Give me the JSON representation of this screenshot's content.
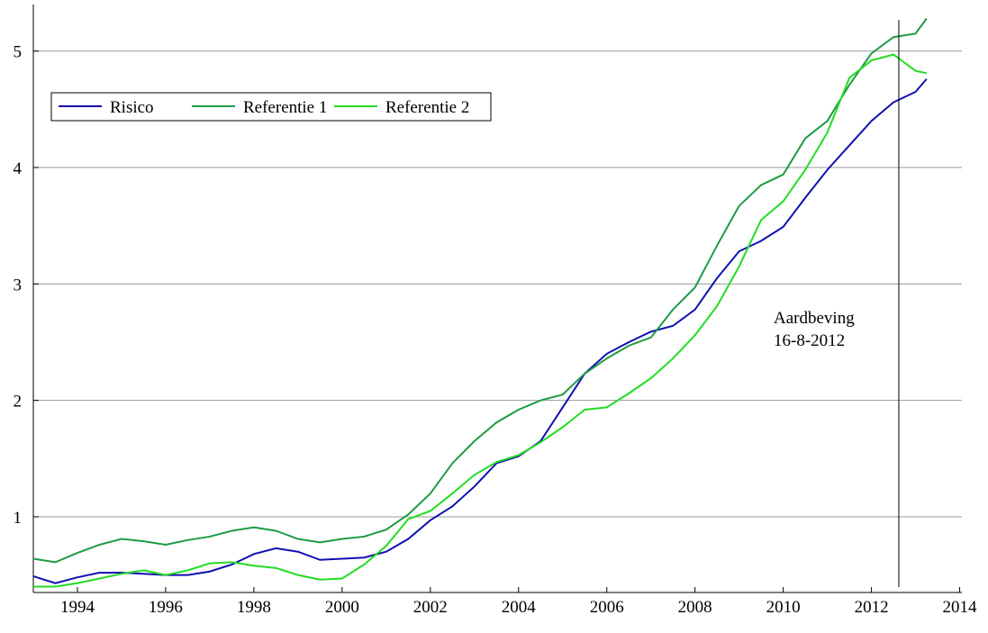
{
  "chart_data": {
    "type": "line",
    "x": [
      1993.0,
      1993.5,
      1994.0,
      1994.5,
      1995.0,
      1995.5,
      1996.0,
      1996.5,
      1997.0,
      1997.5,
      1998.0,
      1998.5,
      1999.0,
      1999.5,
      2000.0,
      2000.5,
      2001.0,
      2001.5,
      2002.0,
      2002.5,
      2003.0,
      2003.5,
      2004.0,
      2004.5,
      2005.0,
      2005.5,
      2006.0,
      2006.5,
      2007.0,
      2007.5,
      2008.0,
      2008.5,
      2009.0,
      2009.5,
      2010.0,
      2010.5,
      2011.0,
      2011.5,
      2012.0,
      2012.5,
      2013.0,
      2013.25
    ],
    "series": [
      {
        "name": "Risico",
        "color": "#1010b0",
        "values": [
          0.49,
          0.43,
          0.48,
          0.52,
          0.52,
          0.51,
          0.5,
          0.5,
          0.53,
          0.59,
          0.68,
          0.73,
          0.7,
          0.63,
          0.64,
          0.65,
          0.7,
          0.81,
          0.97,
          1.09,
          1.26,
          1.46,
          1.52,
          1.65,
          1.94,
          2.23,
          2.4,
          2.5,
          2.59,
          2.64,
          2.78,
          3.05,
          3.28,
          3.37,
          3.49,
          3.74,
          3.98,
          4.19,
          4.4,
          4.56,
          4.65,
          4.76
        ]
      },
      {
        "name": "Referentie 1",
        "color": "#1f9a45",
        "values": [
          0.64,
          0.61,
          0.69,
          0.76,
          0.81,
          0.79,
          0.76,
          0.8,
          0.83,
          0.88,
          0.91,
          0.88,
          0.81,
          0.78,
          0.81,
          0.83,
          0.89,
          1.02,
          1.2,
          1.46,
          1.65,
          1.81,
          1.92,
          2.0,
          2.05,
          2.23,
          2.36,
          2.47,
          2.54,
          2.78,
          2.97,
          3.33,
          3.67,
          3.85,
          3.94,
          4.25,
          4.4,
          4.71,
          4.98,
          5.12,
          5.15,
          5.28
        ]
      },
      {
        "name": "Referentie 2",
        "color": "#22dd22",
        "values": [
          0.4,
          0.4,
          0.43,
          0.47,
          0.51,
          0.54,
          0.5,
          0.54,
          0.6,
          0.61,
          0.58,
          0.56,
          0.5,
          0.46,
          0.47,
          0.59,
          0.75,
          0.98,
          1.05,
          1.2,
          1.36,
          1.47,
          1.53,
          1.64,
          1.77,
          1.92,
          1.94,
          2.06,
          2.19,
          2.36,
          2.56,
          2.81,
          3.15,
          3.55,
          3.71,
          3.98,
          4.3,
          4.77,
          4.92,
          4.97,
          4.83,
          4.81
        ]
      }
    ],
    "xlim": [
      1993,
      2014.05
    ],
    "ylim": [
      0.35,
      5.4
    ],
    "xticks": [
      1994,
      1996,
      1998,
      2000,
      2002,
      2004,
      2006,
      2008,
      2010,
      2012,
      2014
    ],
    "yticks": [
      1,
      2,
      3,
      4,
      5
    ],
    "grid": true,
    "annotation": {
      "x": 2012.62,
      "text": [
        "Aardbeving",
        "16-8-2012"
      ]
    }
  }
}
